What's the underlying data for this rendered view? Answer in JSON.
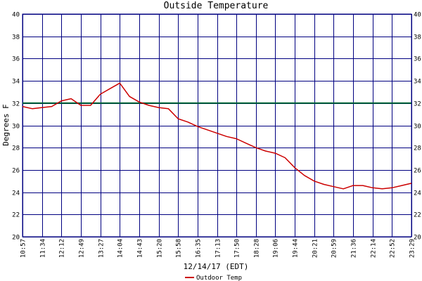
{
  "chart_data": {
    "type": "line",
    "title": "Outside Temperature",
    "xlabel": "12/14/17 (EDT)",
    "ylabel": "Degrees F",
    "ylim": [
      20,
      40
    ],
    "y_ticks": [
      "20",
      "22",
      "24",
      "26",
      "28",
      "30",
      "32",
      "34",
      "36",
      "38",
      "40"
    ],
    "x_tick_labels": [
      "10:57",
      "11:34",
      "12:12",
      "12:49",
      "13:27",
      "14:04",
      "14:43",
      "15:20",
      "15:58",
      "16:35",
      "17:13",
      "17:50",
      "18:28",
      "19:06",
      "19:44",
      "20:21",
      "20:59",
      "21:36",
      "22:14",
      "22:52",
      "23:29"
    ],
    "grid": true,
    "legend_position": "bottom",
    "reference_line": {
      "value": 32,
      "color": "#006633"
    },
    "colors": {
      "grid": "#000080",
      "series": "#cc0000",
      "reference": "#006633"
    },
    "series": [
      {
        "name": "Outdoor Temp",
        "x": [
          0,
          0.5,
          1,
          1.5,
          2,
          2.5,
          3,
          3.5,
          4,
          4.5,
          5,
          5.5,
          6,
          6.5,
          7,
          7.5,
          8,
          8.5,
          9,
          9.5,
          10,
          10.5,
          11,
          11.5,
          12,
          12.5,
          13,
          13.5,
          14,
          14.5,
          15,
          15.5,
          16,
          16.5,
          17,
          17.5,
          18,
          18.5,
          19,
          19.5,
          20
        ],
        "values": [
          31.7,
          31.5,
          31.6,
          31.7,
          32.2,
          32.4,
          31.8,
          31.8,
          32.8,
          33.3,
          33.8,
          32.6,
          32.1,
          31.8,
          31.6,
          31.5,
          30.6,
          30.3,
          29.9,
          29.6,
          29.3,
          29.0,
          28.8,
          28.4,
          28.0,
          27.7,
          27.5,
          27.1,
          26.2,
          25.5,
          25.0,
          24.7,
          24.5,
          24.3,
          24.6,
          24.6,
          24.4,
          24.3,
          24.4,
          24.6,
          24.8
        ]
      }
    ]
  }
}
